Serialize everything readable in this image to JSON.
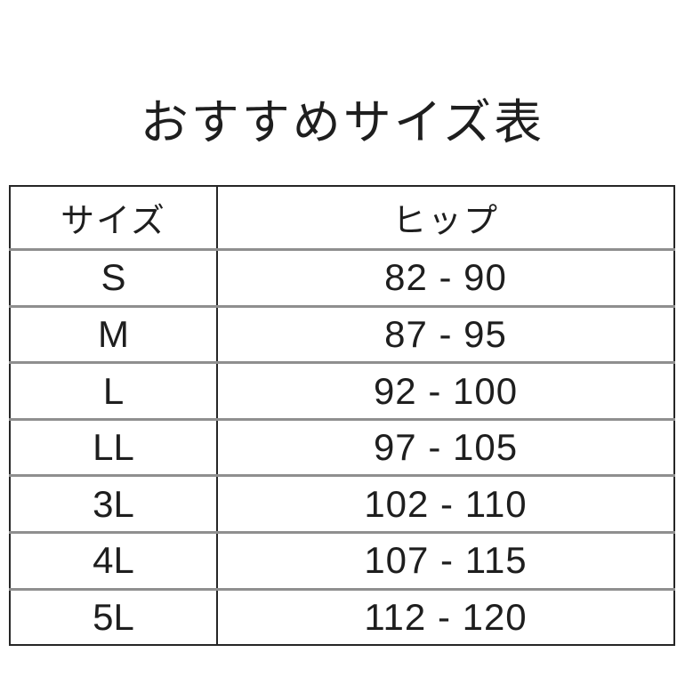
{
  "title": "おすすめサイズ表",
  "table": {
    "headers": {
      "size": "サイズ",
      "hip": "ヒップ"
    },
    "rows": [
      {
        "size": "S",
        "hip": "82 - 90"
      },
      {
        "size": "M",
        "hip": "87 - 95"
      },
      {
        "size": "L",
        "hip": "92 - 100"
      },
      {
        "size": "LL",
        "hip": "97 - 105"
      },
      {
        "size": "3L",
        "hip": "102 - 110"
      },
      {
        "size": "4L",
        "hip": "107 - 115"
      },
      {
        "size": "5L",
        "hip": "112 - 120"
      }
    ]
  },
  "colors": {
    "background": "#ffffff",
    "text": "#1e1e1e",
    "outer_border": "#262626",
    "row_separator": "#8f8f8f"
  }
}
